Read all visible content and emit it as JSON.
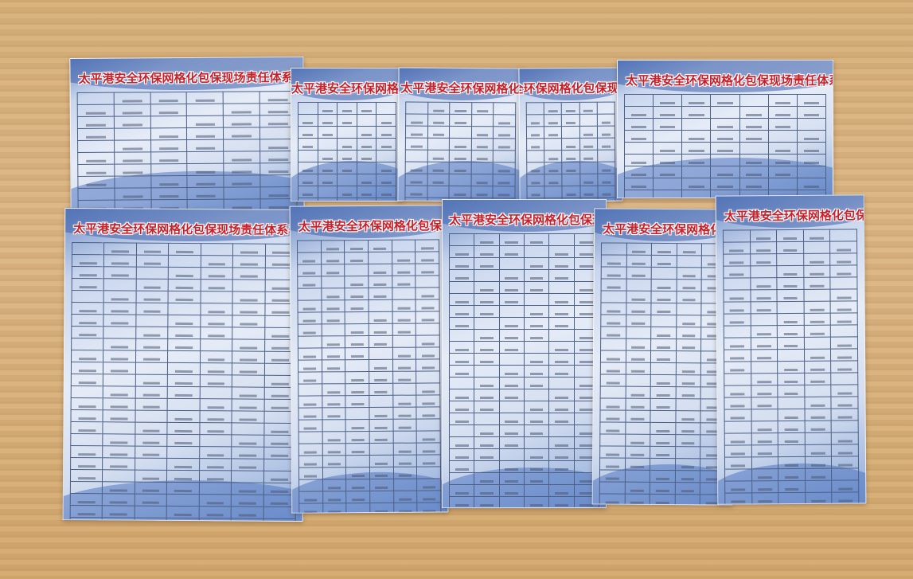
{
  "scene": "photo-of-posters-on-wooden-table",
  "poster_title": "太平港安全环保网格化包保现场责任体系表",
  "posters": [
    {
      "name": "poster-1"
    },
    {
      "name": "poster-2"
    },
    {
      "name": "poster-3"
    },
    {
      "name": "poster-4"
    },
    {
      "name": "poster-5"
    },
    {
      "name": "poster-6"
    },
    {
      "name": "poster-7"
    },
    {
      "name": "poster-8"
    },
    {
      "name": "poster-9"
    },
    {
      "name": "poster-10"
    }
  ],
  "colors": {
    "table_wood": "#d7b07a",
    "poster_blue": "#6f8fc7",
    "title_red": "#c8202a"
  }
}
